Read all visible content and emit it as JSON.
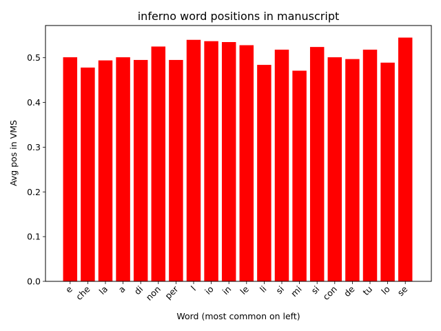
{
  "chart_data": {
    "type": "bar",
    "title": "inferno word positions in manuscript",
    "xlabel": "Word (most common on left)",
    "ylabel": "Avg pos in VMS",
    "categories": [
      "e",
      "che",
      "la",
      "a",
      "di",
      "non",
      "per",
      "l",
      "io",
      "in",
      "le",
      "li",
      "si",
      "mi",
      "si",
      "con",
      "de",
      "tu",
      "lo",
      "se"
    ],
    "values": [
      0.501,
      0.478,
      0.494,
      0.501,
      0.495,
      0.525,
      0.495,
      0.54,
      0.537,
      0.535,
      0.528,
      0.484,
      0.518,
      0.471,
      0.524,
      0.501,
      0.497,
      0.518,
      0.489,
      0.545
    ],
    "yticks": [
      "0.0",
      "0.1",
      "0.2",
      "0.3",
      "0.4",
      "0.5"
    ],
    "ylim": [
      0,
      0.572
    ],
    "bar_color": "#ff0000",
    "grid": false,
    "legend": "none"
  }
}
